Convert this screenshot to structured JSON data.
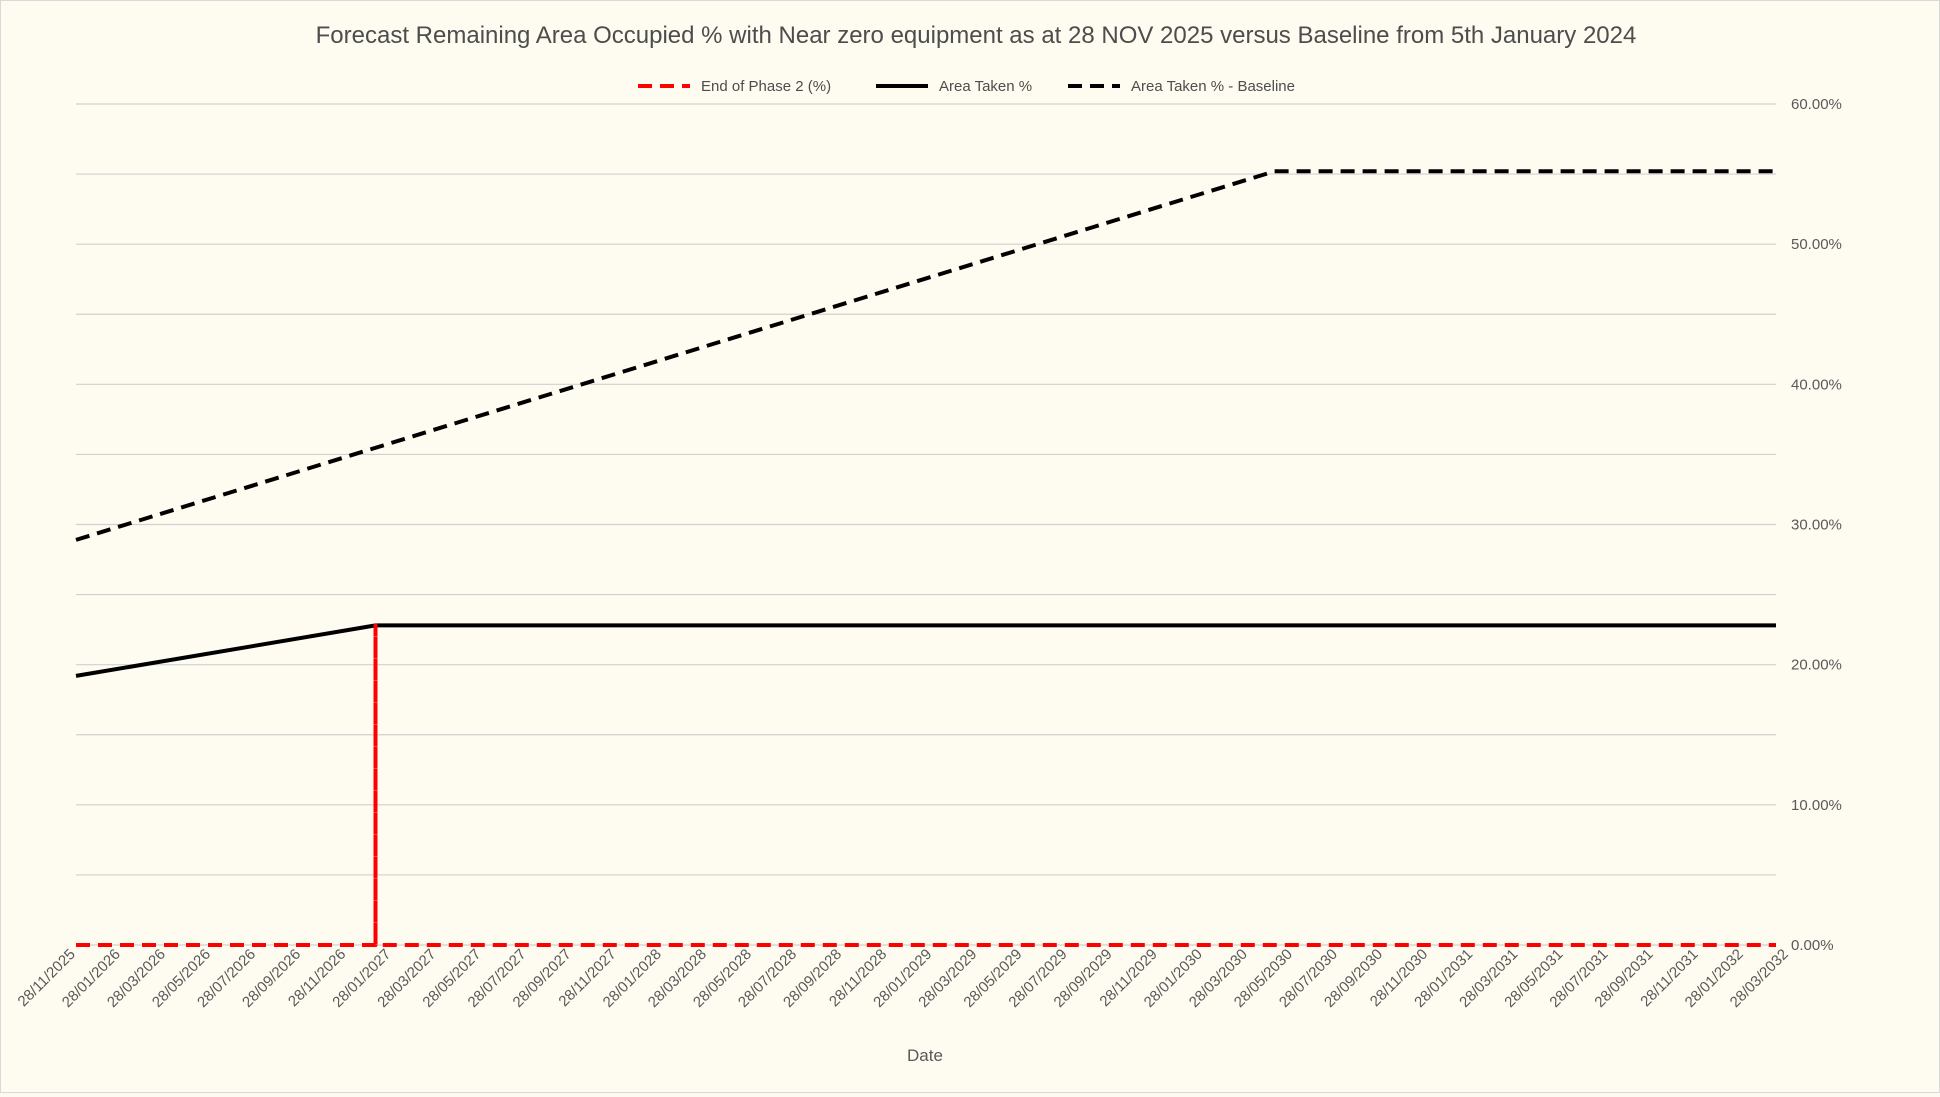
{
  "chart_data": {
    "type": "line",
    "title": "Forecast Remaining Area Occupied % with Near zero equipment as at 28 NOV 2025 versus Baseline from 5th January 2024",
    "xlabel": "Date",
    "ylabel": "",
    "y_axis_side": "right",
    "ylim": [
      0,
      0.6
    ],
    "y_ticks": [
      "0.00%",
      "10.00%",
      "20.00%",
      "30.00%",
      "40.00%",
      "50.00%",
      "60.00%"
    ],
    "x_tick_labels": [
      "28/11/2025",
      "28/01/2026",
      "28/03/2026",
      "28/05/2026",
      "28/07/2026",
      "28/09/2026",
      "28/11/2026",
      "28/01/2027",
      "28/03/2027",
      "28/05/2027",
      "28/07/2027",
      "28/09/2027",
      "28/11/2027",
      "28/01/2028",
      "28/03/2028",
      "28/05/2028",
      "28/07/2028",
      "28/09/2028",
      "28/11/2028",
      "28/01/2029",
      "28/03/2029",
      "28/05/2029",
      "28/07/2029",
      "28/09/2029",
      "28/11/2029",
      "28/01/2030",
      "28/03/2030",
      "28/05/2030",
      "28/07/2030",
      "28/09/2030",
      "28/11/2030",
      "28/01/2031",
      "28/03/2031",
      "28/05/2031",
      "28/07/2031",
      "28/09/2031",
      "28/11/2031",
      "28/01/2032",
      "28/03/2032"
    ],
    "x_range": [
      "2025-11-28",
      "2032-05-28"
    ],
    "grid": true,
    "legend_position": "top",
    "series": [
      {
        "name": "End of Phase 2 (%)",
        "color": "#ff0000",
        "style": "dashed",
        "points": [
          {
            "x": "2025-11-28",
            "y": 0
          },
          {
            "x": "2027-01-20",
            "y": 0
          },
          {
            "x": "2027-01-20",
            "y": 0.228
          },
          {
            "x": "2027-01-20",
            "y": 0
          },
          {
            "x": "2032-05-28",
            "y": 0
          }
        ]
      },
      {
        "name": "Area Taken %",
        "color": "#000000",
        "style": "solid",
        "points": [
          {
            "x": "2025-11-28",
            "y": 0.192
          },
          {
            "x": "2027-01-20",
            "y": 0.228
          },
          {
            "x": "2032-05-28",
            "y": 0.228
          }
        ]
      },
      {
        "name": "Area Taken % - Baseline",
        "color": "#000000",
        "style": "dashed",
        "points": [
          {
            "x": "2025-11-28",
            "y": 0.289
          },
          {
            "x": "2030-06-28",
            "y": 0.552
          },
          {
            "x": "2032-05-28",
            "y": 0.552
          }
        ]
      }
    ]
  }
}
